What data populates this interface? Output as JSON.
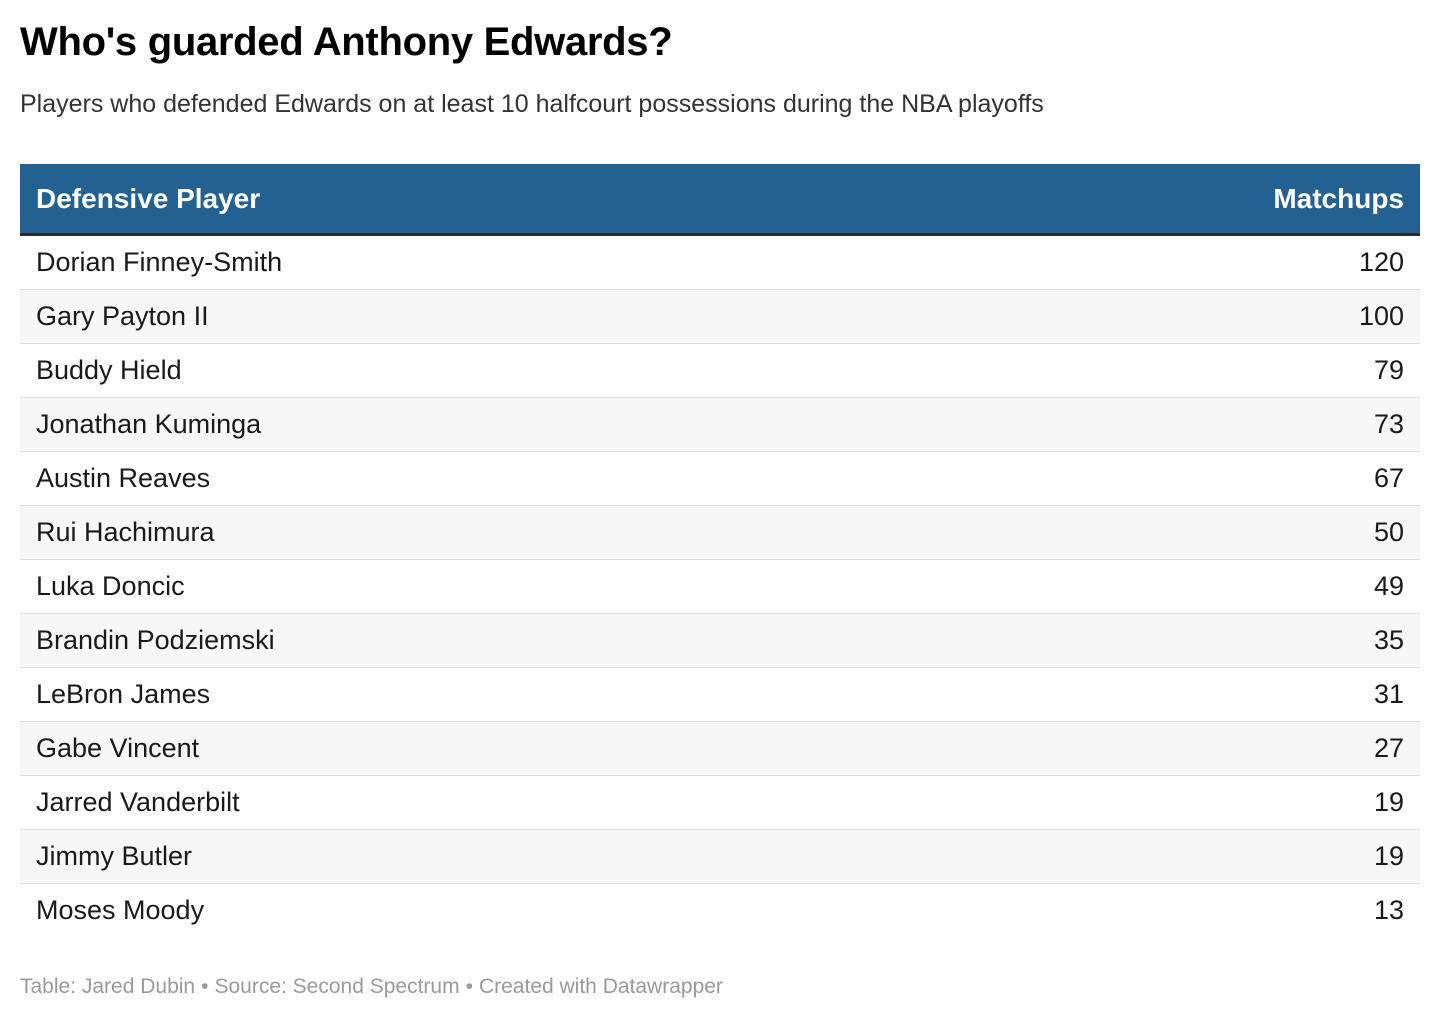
{
  "title": "Who's guarded Anthony Edwards?",
  "subtitle": "Players who defended Edwards on at least 10 halfcourt possessions during the NBA playoffs",
  "footer": {
    "credit": "Table: Jared Dubin",
    "source": "Source: Second Spectrum",
    "tool": "Created with Datawrapper",
    "separator": "•"
  },
  "colors": {
    "header_bg": "#236192",
    "header_text": "#ffffff",
    "alt_row_bg": "#f7f7f7"
  },
  "chart_data": {
    "type": "table",
    "title": "Who's guarded Anthony Edwards?",
    "subtitle": "Players who defended Edwards on at least 10 halfcourt possessions during the NBA playoffs",
    "columns": [
      "Defensive Player",
      "Matchups"
    ],
    "rows": [
      {
        "player": "Dorian Finney-Smith",
        "matchups": 120
      },
      {
        "player": "Gary Payton II",
        "matchups": 100
      },
      {
        "player": "Buddy Hield",
        "matchups": 79
      },
      {
        "player": "Jonathan Kuminga",
        "matchups": 73
      },
      {
        "player": "Austin Reaves",
        "matchups": 67
      },
      {
        "player": "Rui Hachimura",
        "matchups": 50
      },
      {
        "player": "Luka Doncic",
        "matchups": 49
      },
      {
        "player": "Brandin Podziemski",
        "matchups": 35
      },
      {
        "player": "LeBron James",
        "matchups": 31
      },
      {
        "player": "Gabe Vincent",
        "matchups": 27
      },
      {
        "player": "Jarred Vanderbilt",
        "matchups": 19
      },
      {
        "player": "Jimmy Butler",
        "matchups": 19
      },
      {
        "player": "Moses Moody",
        "matchups": 13
      }
    ]
  }
}
